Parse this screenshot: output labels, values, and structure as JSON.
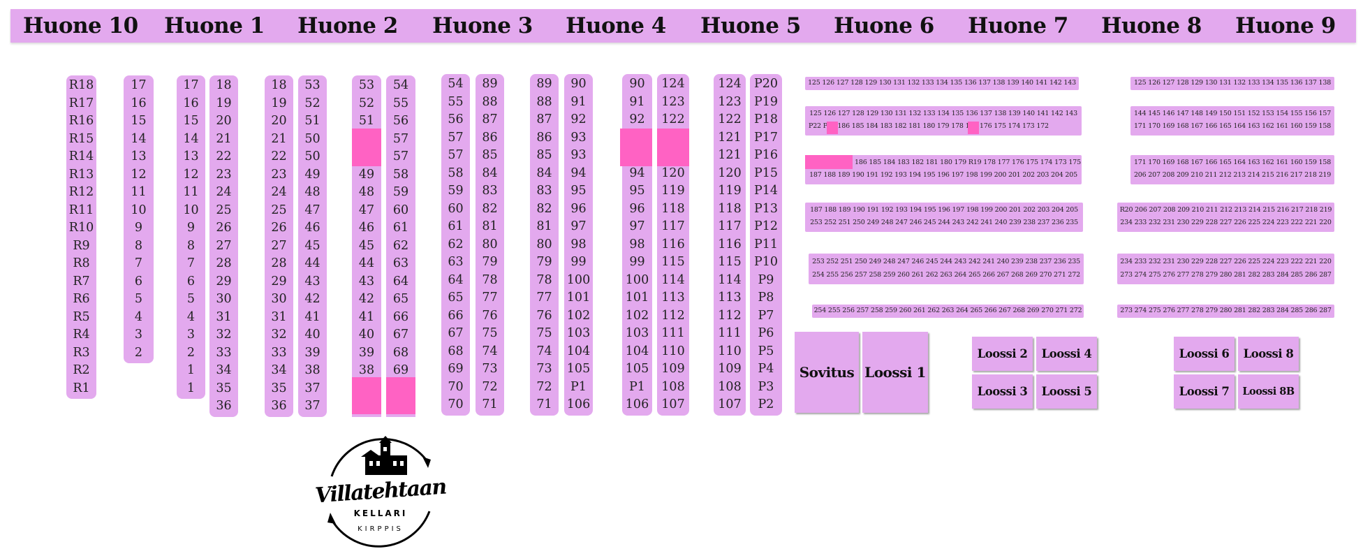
{
  "rooms": [
    "Huone 10",
    "Huone 1",
    "Huone 2",
    "Huone 3",
    "Huone 4",
    "Huone 5",
    "Huone 6",
    "Huone 7",
    "Huone 8",
    "Huone 9"
  ],
  "colors": {
    "tile": "#e3a9ee",
    "taken": "#ff62c3"
  },
  "columns": [
    {
      "values": [
        "R18",
        "R17",
        "R16",
        "R15",
        "R14",
        "R13",
        "R12",
        "R11",
        "R10",
        "R9",
        "R8",
        "R7",
        "R6",
        "R5",
        "R4",
        "R3",
        "R2",
        "R1"
      ]
    },
    {
      "values": [
        "17",
        "16",
        "15",
        "14",
        "13",
        "12",
        "11",
        "10",
        "9",
        "8",
        "7",
        "6",
        "5",
        "4",
        "3",
        "2"
      ]
    },
    {
      "values": [
        "17",
        "16",
        "15",
        "14",
        "13",
        "12",
        "11",
        "10",
        "9",
        "8",
        "7",
        "6",
        "5",
        "4",
        "3",
        "2",
        "1",
        "1"
      ]
    },
    {
      "values": [
        "18",
        "19",
        "20",
        "21",
        "22",
        "23",
        "24",
        "25",
        "26",
        "27",
        "28",
        "29",
        "30",
        "31",
        "32",
        "33",
        "34",
        "35",
        "36"
      ]
    },
    {
      "values": [
        "18",
        "19",
        "20",
        "21",
        "22",
        "23",
        "24",
        "25",
        "26",
        "27",
        "28",
        "29",
        "30",
        "31",
        "32",
        "33",
        "34",
        "35",
        "36"
      ]
    },
    {
      "values": [
        "53",
        "52",
        "51",
        "50",
        "50",
        "49",
        "48",
        "47",
        "46",
        "45",
        "44",
        "43",
        "42",
        "41",
        "40",
        "39",
        "38",
        "37",
        "37"
      ]
    },
    {
      "values": [
        "53",
        "52",
        "51",
        "",
        "",
        "49",
        "48",
        "47",
        "46",
        "45",
        "44",
        "43",
        "42",
        "41",
        "40",
        "39",
        "38",
        "",
        ""
      ]
    },
    {
      "values": [
        "54",
        "55",
        "56",
        "57",
        "57",
        "58",
        "59",
        "60",
        "61",
        "62",
        "63",
        "64",
        "65",
        "66",
        "67",
        "68",
        "69",
        "",
        ""
      ]
    },
    {
      "values": [
        "54",
        "55",
        "56",
        "57",
        "57",
        "58",
        "59",
        "60",
        "61",
        "62",
        "63",
        "64",
        "65",
        "66",
        "67",
        "68",
        "69",
        "70",
        "70"
      ]
    },
    {
      "values": [
        "89",
        "88",
        "87",
        "86",
        "85",
        "84",
        "83",
        "82",
        "81",
        "80",
        "79",
        "78",
        "77",
        "76",
        "75",
        "74",
        "73",
        "72",
        "71"
      ]
    },
    {
      "values": [
        "89",
        "88",
        "87",
        "86",
        "85",
        "84",
        "83",
        "82",
        "81",
        "80",
        "79",
        "78",
        "77",
        "76",
        "75",
        "74",
        "73",
        "72",
        "71"
      ]
    },
    {
      "values": [
        "90",
        "91",
        "92",
        "93",
        "93",
        "94",
        "95",
        "96",
        "97",
        "98",
        "99",
        "100",
        "101",
        "102",
        "103",
        "104",
        "105",
        "P1",
        "106"
      ]
    },
    {
      "values": [
        "90",
        "91",
        "92",
        "",
        "",
        "94",
        "95",
        "96",
        "97",
        "98",
        "99",
        "100",
        "101",
        "102",
        "103",
        "104",
        "105",
        "P1",
        "106"
      ]
    },
    {
      "values": [
        "124",
        "123",
        "122",
        "",
        "",
        "120",
        "119",
        "118",
        "117",
        "116",
        "115",
        "114",
        "113",
        "112",
        "111",
        "110",
        "109",
        "108",
        "107"
      ]
    },
    {
      "values": [
        "124",
        "123",
        "122",
        "121",
        "121",
        "120",
        "119",
        "118",
        "117",
        "116",
        "115",
        "114",
        "113",
        "112",
        "111",
        "110",
        "109",
        "108",
        "107"
      ]
    },
    {
      "values": [
        "P20",
        "P19",
        "P18",
        "P17",
        "P16",
        "P15",
        "P14",
        "P13",
        "P12",
        "P11",
        "P10",
        "P9",
        "P8",
        "P7",
        "P6",
        "P5",
        "P4",
        "P3",
        "P2"
      ]
    }
  ],
  "huone6_rows": [
    [
      "125 126 127 128 129 130 131 132 133 134 135 136 137 138 139 140 141 142 143"
    ],
    [
      "125 126 127 128 129 130 131 132 133 134 135 136 137 138 139 140 141 142 143",
      "P22       P21 186 185 184 183 182 181 180 179       178 177 176 175 174 173 172"
    ],
    [
      "186 185 184 183 182 181 180 179 R19 178 177 176 175 174 173 175",
      "187 188 189 190 191 192 193 194 195 196 197 198 199 200 201 202 203 204 205"
    ],
    [
      "187 188 189 190 191 192 193 194 195 196 197 198 199 200 201 202 203 204 205",
      "253 252 251 250 249 248 247 246 245 244 243 242 241 240 239 238 237 236 235"
    ],
    [
      "253 252 251 250 249 248 247 246 245 244 243 242 241 240 239 238 237 236 235",
      "254 255 256 257 258 259 260 261 262 263 264 265 266 267 268 269 270 271 272"
    ],
    [
      "254 255 256 257 258 259 260 261 262 263 264 265 266 267 268 269 270 271 272"
    ]
  ],
  "huone8_rows": [
    [
      "125 126 127 128 129 130 131 132 133 134 135 136 137 138"
    ],
    [
      "144 145 146 147 148 149 150 151 152 153 154 155 156 157",
      "171 170 169 168 167 166 165 164 163 162 161 160 159 158"
    ],
    [
      "171 170 169 168 167 166 165 164 163 162 161 160 159 158",
      "206 207 208 209 210 211 212 213 214 215 216 217 218 219"
    ],
    [
      "R20 206 207 208 209 210 211 212 213 214 215 216 217 218 219",
      "234 233 232 231 230 229 228 227 226 225 224 223 222 221 220"
    ],
    [
      "234 233 232 231 230 229 228 227 226 225 224 223 222 221 220",
      "273 274 275 276 277 278 279 280 281 282 283 284 285 286 287"
    ],
    [
      "273 274 275 276 277 278 279 280 281 282 283 284 285 286 287"
    ]
  ],
  "boxes": [
    "Sovitus",
    "Loossi 1",
    "Loossi 2",
    "Loossi 4",
    "Loossi 3",
    "Loossi 5",
    "Loossi 6",
    "Loossi 8",
    "Loossi 7",
    "Loossi 8B"
  ],
  "logo": {
    "name": "Villatehtaan",
    "sub": "KELLARI",
    "sub2": "KIRPPIS"
  }
}
